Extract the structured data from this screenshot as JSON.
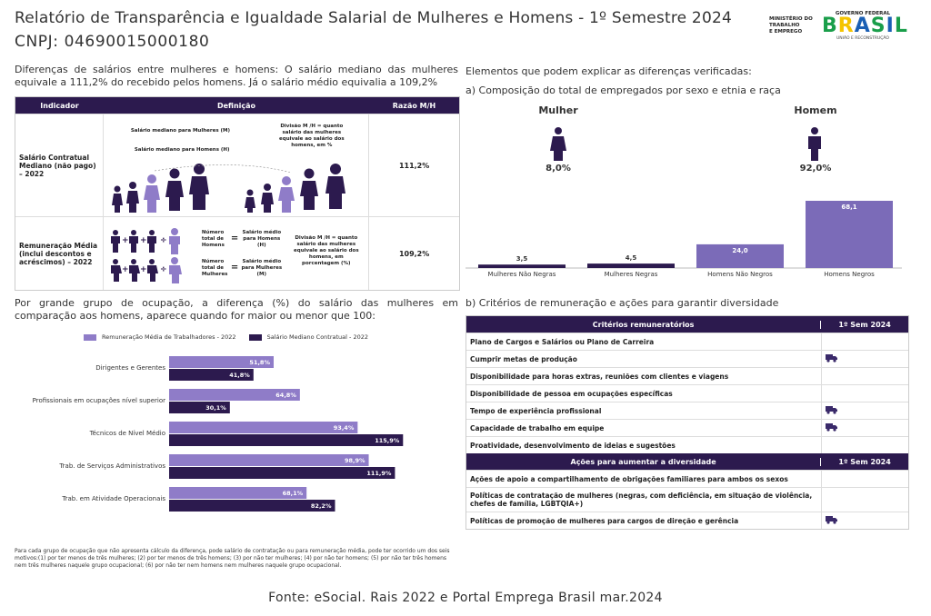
{
  "header": {
    "title": "Relatório de Transparência e Igualdade Salarial de Mulheres e Homens - 1º Semestre 2024",
    "cnpj": "CNPJ: 04690015000180",
    "ministry": [
      "MINISTÉRIO DO",
      "TRABALHO",
      "E EMPREGO"
    ],
    "gov_top": "GOVERNO FEDERAL",
    "gov_brand": [
      "B",
      "R",
      "A",
      "S",
      "I",
      "L"
    ],
    "gov_bottom": "UNIÃO E RECONSTRUÇÃO"
  },
  "intro": "Diferenças de salários entre mulheres e homens: O salário mediano das mulheres equivale a 111,2% do recebido pelos homens. Já o salário médio equivalia a 109,2%",
  "indicator_table": {
    "headers": [
      "Indicador",
      "Definição",
      "Razão M/H"
    ],
    "row1": {
      "indicator": "Salário Contratual Mediano (não pago) – 2022",
      "label_women": "Salário mediano para Mulheres (M)",
      "label_men": "Salário mediano para Homens (H)",
      "division": "Divisão M /H = quanto salário das mulheres equivale ao salário dos homens, em %",
      "ratio": "111,2%"
    },
    "row2": {
      "indicator": "Remuneração Média (inclui descontos e acréscimos) – 2022",
      "num_men": "Número total de Homens",
      "avg_men": "Salário médio para Homens (H)",
      "num_women": "Número total de Mulheres",
      "avg_women": "Salário médio para Mulheres (M)",
      "division": "Divisão M /H = quanto salário das mulheres equivale ao salário dos homens, em porcentagem (%)",
      "ratio": "109,2%"
    }
  },
  "right": {
    "elements_title": "Elementos que podem explicar as diferenças verificadas:",
    "composition_title": "a) Composição do total de empregados por sexo e etnia e raça",
    "woman_label": "Mulher",
    "woman_pct": "8,0%",
    "man_label": "Homem",
    "man_pct": "92,0%",
    "criteria_title": "b) Critérios de remuneração e ações para garantir diversidade"
  },
  "chart_data": [
    {
      "type": "bar",
      "categories": [
        "Mulheres Não Negras",
        "Mulheres Negras",
        "Homens Não Negros",
        "Homens Negros"
      ],
      "values": [
        3.5,
        4.5,
        24.0,
        68.1
      ],
      "labels": [
        "3,5",
        "4,5",
        "24,0",
        "68,1"
      ],
      "colors": [
        "#2c1a4e",
        "#2c1a4e",
        "#7b6bb8",
        "#7b6bb8"
      ]
    },
    {
      "type": "bar",
      "orientation": "horizontal",
      "categories": [
        "Dirigentes e Gerentes",
        "Profissionais em ocupações nível superior",
        "Técnicos de Nível Médio",
        "Trab. de Serviços Administrativos",
        "Trab. em Atividade Operacionais"
      ],
      "series": [
        {
          "name": "Remuneração Média de Trabalhadores - 2022",
          "values": [
            51.8,
            64.8,
            93.4,
            98.9,
            68.1
          ],
          "labels": [
            "51,8%",
            "64,8%",
            "93,4%",
            "98,9%",
            "68,1%"
          ],
          "color": "#8f7cc8"
        },
        {
          "name": "Salário Mediano Contratual - 2022",
          "values": [
            41.8,
            30.1,
            115.9,
            111.9,
            82.2
          ],
          "labels": [
            "41,8%",
            "30,1%",
            "115,9%",
            "111,9%",
            "82,2%"
          ],
          "color": "#2c1a4e"
        }
      ]
    }
  ],
  "occupation_title": "Por grande grupo de ocupação, a diferença (%) do salário das mulheres em comparação aos homens, aparece quando for maior ou menor que 100:",
  "footnote": "Para cada grupo de ocupação que não apresenta cálculo da diferença, pode salário de contratação ou para remuneração média, pode ter ocorrido um dos seis motivos:(1) por ter menos de três mulheres; (2) por ter menos de três homens; (3) por não ter mulheres; (4) por não ter homens; (5) por não ter três homens nem três mulheres naquele grupo ocupacional; (6) por não ter nem homens nem mulheres naquele grupo ocupacional.",
  "criteria_table": {
    "header1": "Critérios remuneratórios",
    "header2": "1º Sem 2024",
    "rows1": [
      {
        "label": "Plano de Cargos e Salários ou Plano de Carreira",
        "mark": false
      },
      {
        "label": "Cumprir metas de produção",
        "mark": true
      },
      {
        "label": "Disponibilidade para horas extras, reuniões com clientes e viagens",
        "mark": false
      },
      {
        "label": "Disponibilidade de pessoa em ocupações específicas",
        "mark": false
      },
      {
        "label": "Tempo de experiência profissional",
        "mark": true
      },
      {
        "label": "Capacidade de trabalho em equipe",
        "mark": true
      },
      {
        "label": "Proatividade, desenvolvimento de ideias e sugestões",
        "mark": false
      }
    ],
    "header3": "Ações para aumentar a diversidade",
    "header4": "1º Sem 2024",
    "rows2": [
      {
        "label": "Ações de apoio a compartilhamento de obrigações familiares para ambos os sexos",
        "mark": false
      },
      {
        "label": "Políticas de contratação de mulheres (negras, com deficiência, em situação de violência, chefes de família, LGBTQIA+)",
        "mark": false
      },
      {
        "label": "Políticas de promoção de mulheres para cargos de direção e gerência",
        "mark": true
      }
    ],
    "mark_icon": "truck-icon"
  },
  "source": "Fonte: eSocial. Rais 2022 e Portal Emprega Brasil mar.2024"
}
